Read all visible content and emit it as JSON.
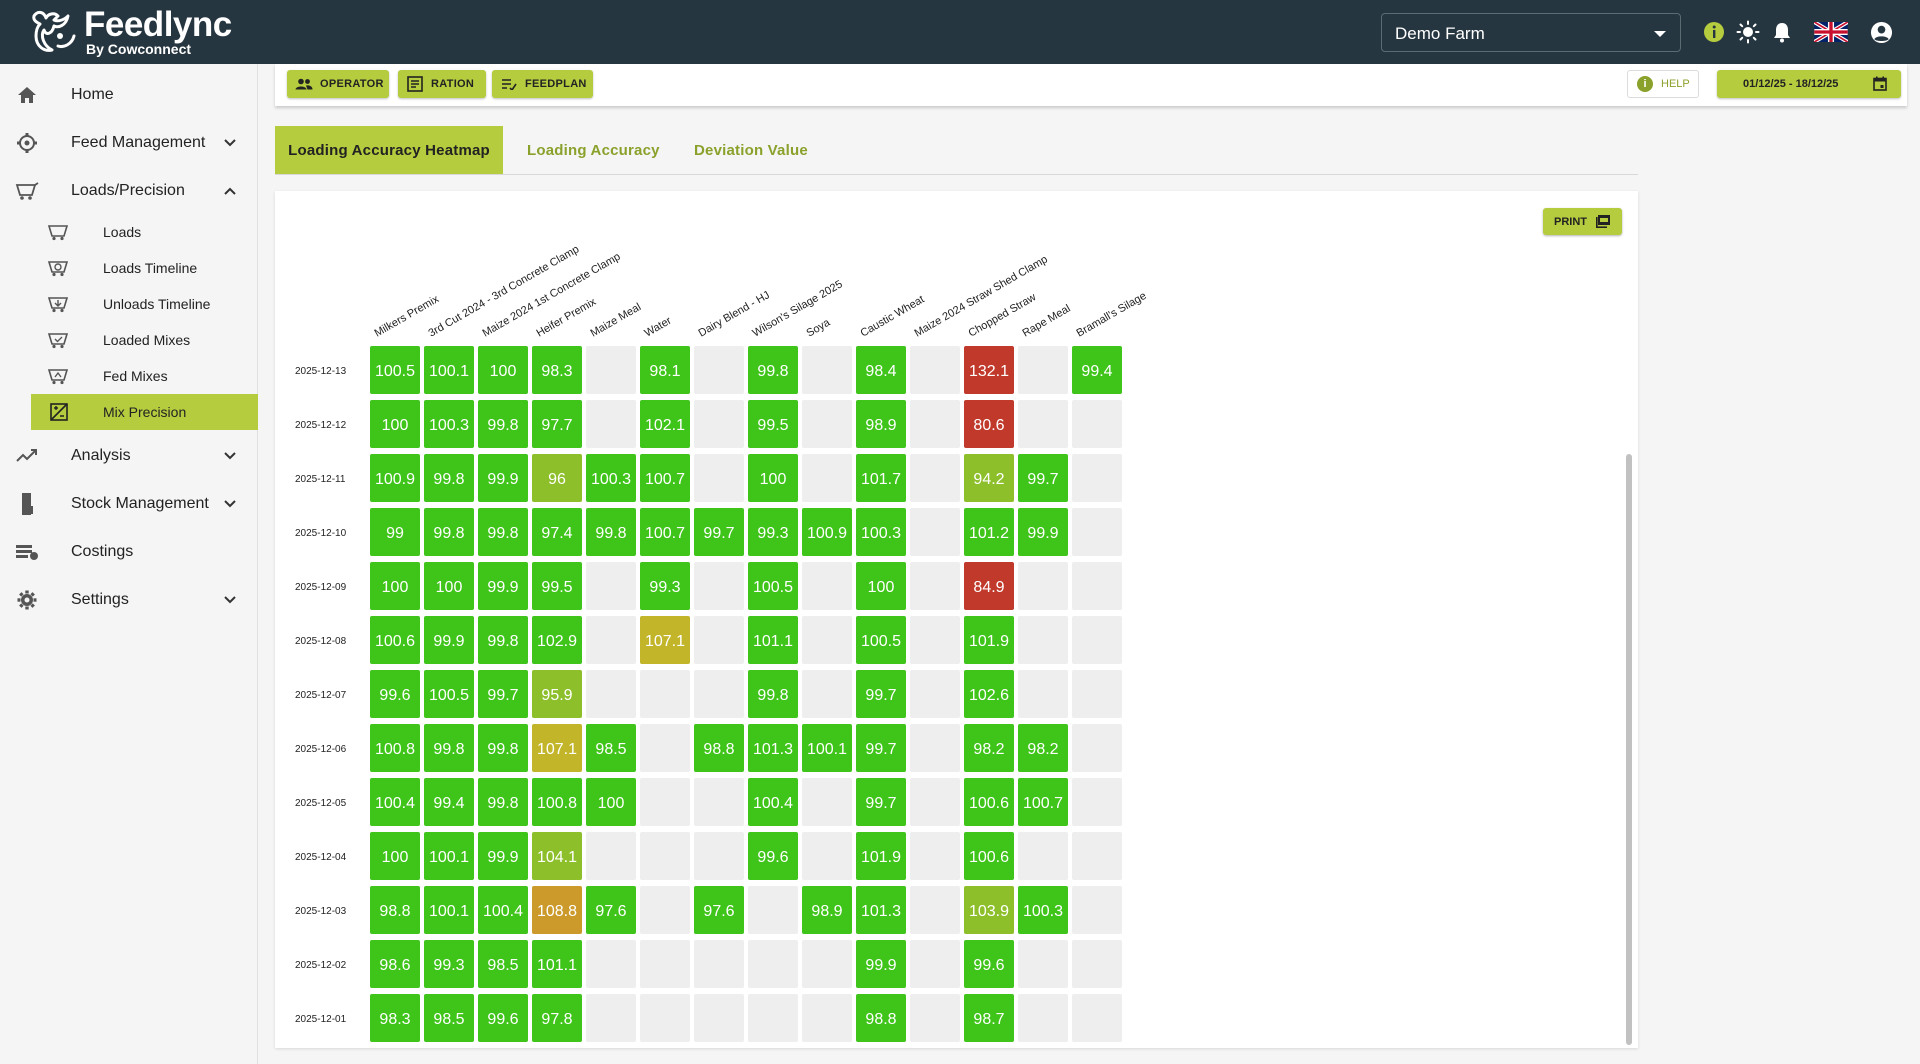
{
  "app": {
    "name": "Feedlync",
    "subtitle": "By Cowconnect",
    "farm": "Demo Farm"
  },
  "topbar_icons": [
    "info-icon",
    "brightness-icon",
    "notifications-icon",
    "uk-flag-icon",
    "account-icon"
  ],
  "sidebar": {
    "items": [
      {
        "label": "Home",
        "icon": "home-icon"
      },
      {
        "label": "Feed Management",
        "icon": "feed-management-icon",
        "expandable": true
      },
      {
        "label": "Loads/Precision",
        "icon": "loads-icon",
        "expanded": true
      },
      {
        "label": "Analysis",
        "icon": "analysis-icon",
        "expandable": true
      },
      {
        "label": "Stock Management",
        "icon": "stock-icon",
        "expandable": true
      },
      {
        "label": "Costings",
        "icon": "costings-icon"
      },
      {
        "label": "Settings",
        "icon": "settings-icon",
        "expandable": true
      }
    ],
    "sub_items": [
      {
        "label": "Loads",
        "icon": "wagon-icon"
      },
      {
        "label": "Loads Timeline",
        "icon": "wagon-timeline-icon"
      },
      {
        "label": "Unloads Timeline",
        "icon": "unload-timeline-icon"
      },
      {
        "label": "Loaded Mixes",
        "icon": "loaded-mixes-icon"
      },
      {
        "label": "Fed Mixes",
        "icon": "fed-mixes-icon"
      },
      {
        "label": "Mix Precision",
        "icon": "mix-precision-icon",
        "active": true
      }
    ]
  },
  "toolbar": {
    "operator_label": "OPERATOR",
    "ration_label": "RATION",
    "feedplan_label": "FEEDPLAN",
    "help_label": "HELP",
    "date_range": "01/12/25 - 18/12/25"
  },
  "tabs": [
    {
      "label": "Loading Accuracy Heatmap",
      "active": true
    },
    {
      "label": "Loading Accuracy",
      "active": false
    },
    {
      "label": "Deviation Value",
      "active": false
    }
  ],
  "print_label": "PRINT",
  "colors": {
    "accent": "#b5cc3e",
    "accent_text": "#8aa12b",
    "topbar": "#263640",
    "cell_good": "#3fc41a",
    "cell_mid": "#8dbf2a",
    "cell_yellow": "#c2b52a",
    "cell_orange": "#cc9a2b",
    "cell_bad": "#c0392b",
    "cell_empty": "#eeeeee"
  },
  "chart_data": {
    "type": "heatmap",
    "columns": [
      "Milkers Premix",
      "3rd Cut 2024 - 3rd Concrete Clamp",
      "Maize 2024 1st Concrete Clamp",
      "Heifer Premix",
      "Maize Meal",
      "Water",
      "Dairy Blend - HJ",
      "Wilson's Silage 2025",
      "Soya",
      "Caustic Wheat",
      "Maize 2024 Straw Shed Clamp",
      "Chopped Straw",
      "Rape Meal",
      "Bramall's Silage"
    ],
    "rows": [
      "2025-12-13",
      "2025-12-12",
      "2025-12-11",
      "2025-12-10",
      "2025-12-09",
      "2025-12-08",
      "2025-12-07",
      "2025-12-06",
      "2025-12-05",
      "2025-12-04",
      "2025-12-03",
      "2025-12-02",
      "2025-12-01"
    ],
    "values": [
      [
        100.5,
        100.1,
        100,
        98.3,
        null,
        98.1,
        null,
        99.8,
        null,
        98.4,
        null,
        132.1,
        null,
        99.4
      ],
      [
        100,
        100.3,
        99.8,
        97.7,
        null,
        102.1,
        null,
        99.5,
        null,
        98.9,
        null,
        80.6,
        null,
        null
      ],
      [
        100.9,
        99.8,
        99.9,
        96,
        100.3,
        100.7,
        null,
        100,
        null,
        101.7,
        null,
        94.2,
        99.7,
        null
      ],
      [
        99,
        99.8,
        99.8,
        97.4,
        99.8,
        100.7,
        99.7,
        99.3,
        100.9,
        100.3,
        null,
        101.2,
        99.9,
        null
      ],
      [
        100,
        100,
        99.9,
        99.5,
        null,
        99.3,
        null,
        100.5,
        null,
        100,
        null,
        84.9,
        null,
        null
      ],
      [
        100.6,
        99.9,
        99.8,
        102.9,
        null,
        107.1,
        null,
        101.1,
        null,
        100.5,
        null,
        101.9,
        null,
        null
      ],
      [
        99.6,
        100.5,
        99.7,
        95.9,
        null,
        null,
        null,
        99.8,
        null,
        99.7,
        null,
        102.6,
        null,
        null
      ],
      [
        100.8,
        99.8,
        99.8,
        107.1,
        98.5,
        null,
        98.8,
        101.3,
        100.1,
        99.7,
        null,
        98.2,
        98.2,
        null
      ],
      [
        100.4,
        99.4,
        99.8,
        100.8,
        100,
        null,
        null,
        100.4,
        null,
        99.7,
        null,
        100.6,
        100.7,
        null
      ],
      [
        100,
        100.1,
        99.9,
        104.1,
        null,
        null,
        null,
        99.6,
        null,
        101.9,
        null,
        100.6,
        null,
        null
      ],
      [
        98.8,
        100.1,
        100.4,
        108.8,
        97.6,
        null,
        97.6,
        null,
        98.9,
        101.3,
        null,
        103.9,
        100.3,
        null
      ],
      [
        98.6,
        99.3,
        98.5,
        101.1,
        null,
        null,
        null,
        null,
        null,
        99.9,
        null,
        99.6,
        null,
        null
      ],
      [
        98.3,
        98.5,
        99.6,
        97.8,
        null,
        null,
        null,
        null,
        null,
        98.8,
        null,
        98.7,
        null,
        null
      ]
    ]
  }
}
